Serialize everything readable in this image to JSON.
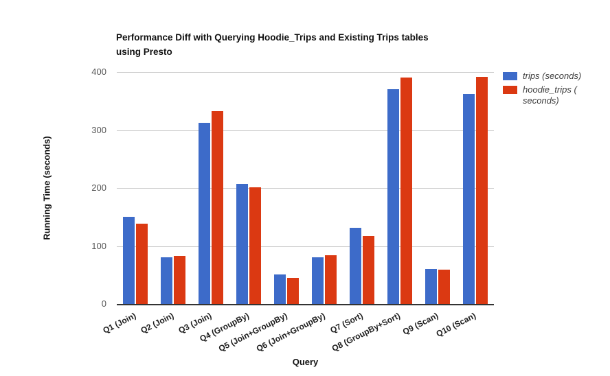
{
  "chart_data": {
    "type": "bar",
    "title": "Performance Diff with Querying Hoodie_Trips and Existing Trips tables using Presto",
    "title_lines": [
      "Performance Diff with Querying Hoodie_Trips and Existing Trips tables",
      "using Presto"
    ],
    "xlabel": "Query",
    "ylabel": "Running Time (seconds)",
    "categories": [
      "Q1 (Join)",
      "Q2 (Join)",
      "Q3 (Join)",
      "Q4 (GroupBy)",
      "Q5 (Join+GroupBy)",
      "Q6 (Join+GroupBy)",
      "Q7 (Sort)",
      "Q8 (GroupBy+Sort)",
      "Q9 (Scan)",
      "Q10 (Scan)"
    ],
    "series": [
      {
        "key": "trips",
        "name": "trips (seconds)",
        "color": "#3d6bc9",
        "values": [
          150,
          80,
          313,
          207,
          51,
          80,
          131,
          370,
          60,
          362
        ]
      },
      {
        "key": "hoodie_trips",
        "name": "hoodie_trips ( seconds)",
        "color": "#db3912",
        "values": [
          138,
          83,
          332,
          201,
          45,
          84,
          117,
          390,
          59,
          392
        ]
      }
    ],
    "ylim": [
      0,
      400
    ],
    "yticks": [
      0,
      100,
      200,
      300,
      400
    ],
    "grid": true,
    "legend_position": "right"
  },
  "colors": {
    "grid": "#cccccc",
    "axis_line": "#333333",
    "tick_text": "#565656"
  }
}
